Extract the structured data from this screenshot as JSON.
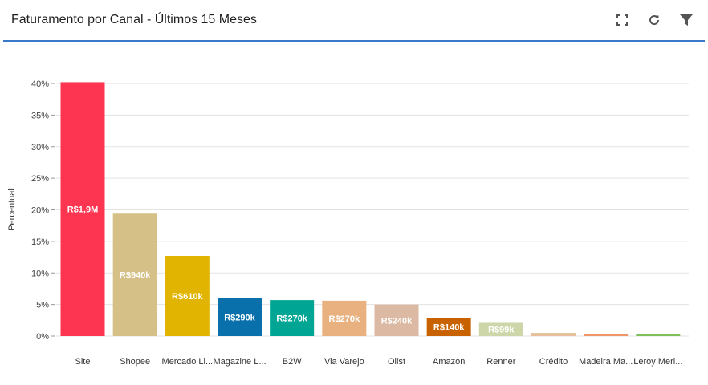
{
  "header": {
    "title": "Faturamento por Canal - Últimos 15 Meses",
    "icons": [
      "fullscreen-icon",
      "refresh-icon",
      "filter-icon"
    ]
  },
  "chart_data": {
    "type": "bar",
    "ylabel": "Percentual",
    "ylim": [
      0,
      40
    ],
    "yticks": [
      "0%",
      "5%",
      "10%",
      "15%",
      "20%",
      "25%",
      "30%",
      "35%",
      "40%"
    ],
    "grid": true,
    "categories": [
      "Site",
      "Shopee",
      "Mercado Li...",
      "Magazine L...",
      "B2W",
      "Via Varejo",
      "Olist",
      "Amazon",
      "Renner",
      "Crédito",
      "Madeira Ma...",
      "Leroy Merl..."
    ],
    "values": [
      40.2,
      19.4,
      12.7,
      6.0,
      5.7,
      5.6,
      5.0,
      2.9,
      2.1,
      0.5,
      0.3,
      0.3
    ],
    "data_labels": [
      "R$1,9M",
      "R$940k",
      "R$610k",
      "R$290k",
      "R$270k",
      "R$270k",
      "R$240k",
      "R$140k",
      "R$99k",
      "",
      "",
      ""
    ],
    "colors": [
      "#fd3550",
      "#d5c087",
      "#e0b400",
      "#0a70ab",
      "#00a693",
      "#e8b17f",
      "#dbb9a2",
      "#c86100",
      "#ccd6a9",
      "#e5c09a",
      "#f1956a",
      "#7dc05b"
    ]
  }
}
